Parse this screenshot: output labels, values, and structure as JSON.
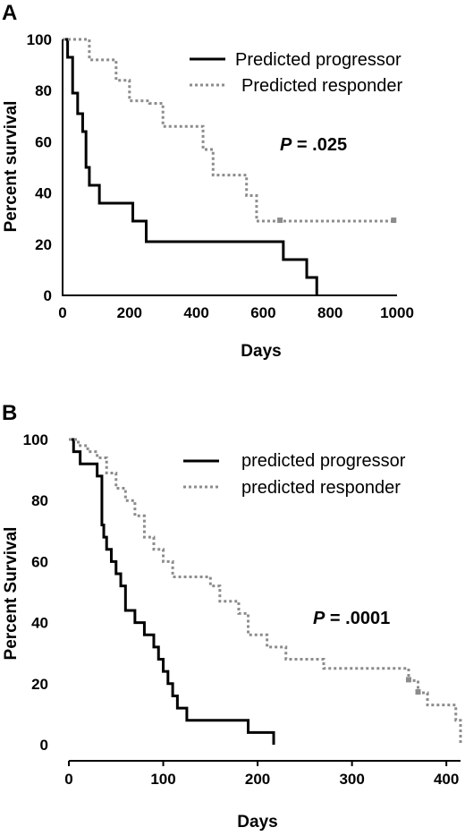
{
  "chart_data": [
    {
      "panel": "A",
      "type": "line",
      "step": true,
      "xlabel": "Days",
      "ylabel": "Percent survival",
      "xlim": [
        0,
        1000
      ],
      "ylim": [
        0,
        100
      ],
      "x_ticks": [
        0,
        200,
        400,
        600,
        800,
        1000
      ],
      "y_ticks": [
        0,
        20,
        40,
        60,
        80,
        100
      ],
      "annotation": {
        "italic": "P",
        "rest": " = .025"
      },
      "legend_position": "top-right",
      "series": [
        {
          "name": "Predicted progressor",
          "color": "#000000",
          "style": "solid",
          "x": [
            0,
            15,
            30,
            45,
            60,
            70,
            80,
            110,
            210,
            250,
            660,
            730,
            760
          ],
          "y": [
            100,
            93,
            79,
            71,
            64,
            50,
            43,
            36,
            29,
            21,
            14,
            7,
            0
          ]
        },
        {
          "name": "Predicted responder",
          "color": "#8c8c8c",
          "style": "dotted",
          "x": [
            0,
            25,
            80,
            160,
            200,
            260,
            300,
            370,
            420,
            450,
            500,
            550,
            580,
            650,
            700,
            990
          ],
          "y": [
            100,
            100,
            92,
            84,
            76,
            75,
            66,
            66,
            57,
            47,
            47,
            39,
            29,
            29,
            29,
            29
          ],
          "censor_x": [
            650,
            990
          ]
        }
      ]
    },
    {
      "panel": "B",
      "type": "line",
      "step": true,
      "xlabel": "Days",
      "ylabel": "Percent Survival",
      "xlim": [
        0,
        415
      ],
      "ylim": [
        0,
        100
      ],
      "x_ticks": [
        0,
        100,
        200,
        300,
        400
      ],
      "y_ticks": [
        0,
        20,
        40,
        60,
        80,
        100
      ],
      "annotation": {
        "italic": "P",
        "rest": " = .0001"
      },
      "legend_position": "top-right",
      "series": [
        {
          "name": "predicted progressor",
          "color": "#000000",
          "style": "solid",
          "x": [
            0,
            5,
            12,
            30,
            35,
            37,
            40,
            45,
            50,
            55,
            60,
            70,
            80,
            90,
            95,
            100,
            105,
            110,
            115,
            125,
            190,
            217
          ],
          "y": [
            100,
            96,
            92,
            88,
            72,
            68,
            64,
            60,
            56,
            52,
            44,
            40,
            36,
            32,
            28,
            24,
            20,
            16,
            12,
            8,
            4,
            0
          ]
        },
        {
          "name": "predicted responder",
          "color": "#8c8c8c",
          "style": "dotted",
          "x": [
            0,
            10,
            20,
            30,
            40,
            50,
            60,
            70,
            80,
            90,
            100,
            110,
            120,
            150,
            160,
            180,
            190,
            210,
            230,
            270,
            360,
            370,
            380,
            410,
            415
          ],
          "y": [
            100,
            98,
            96,
            94,
            89,
            84,
            80,
            75,
            68,
            64,
            60,
            55,
            55,
            52,
            47,
            43,
            36,
            32,
            28,
            25,
            21,
            17,
            13,
            8,
            0
          ],
          "censor_x": [
            360,
            370
          ]
        }
      ]
    }
  ]
}
